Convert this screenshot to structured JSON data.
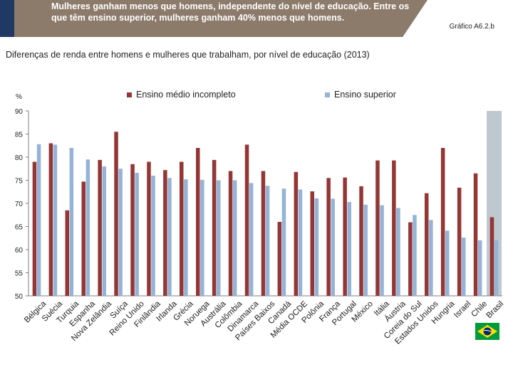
{
  "header": {
    "headline": "Mulheres ganham menos que homens, independente do nível de educação. Entre os que têm ensino superior, mulheres ganham 40% menos que homens.",
    "figure_ref": "Gráfico A6.2.b"
  },
  "colors": {
    "series1": "#943634",
    "series2": "#95b3d7",
    "highlight": "#bfc7cf",
    "banner": "#8c7b6b",
    "accent": "#1f3864"
  },
  "chart_data": {
    "type": "bar",
    "title": "Diferenças de renda entre homens e mulheres que trabalham, por nível de educação (2013)",
    "ylabel": "%",
    "ylim": [
      50,
      90
    ],
    "yticks": [
      "50",
      "55",
      "60",
      "65",
      "70",
      "75",
      "80",
      "85",
      "90"
    ],
    "grid": false,
    "legend": "top",
    "highlight_category": "Brasil",
    "categories": [
      "Bélgica",
      "Suécia",
      "Turquia",
      "Espanha",
      "Nova Zelândia",
      "Suíça",
      "Reino Unido",
      "Finlândia",
      "Irlanda",
      "Grécia",
      "Noruega",
      "Austrália",
      "Colômbia",
      "Dinamarca",
      "Países Baixos",
      "Canadá",
      "Média OCDE",
      "Polônia",
      "França",
      "Portugal",
      "México",
      "Itália",
      "Áustria",
      "Coreia do Sul",
      "Estados Unidos",
      "Hungria",
      "Israel",
      "Chile",
      "Brasil"
    ],
    "series": [
      {
        "name": "Ensino médio incompleto",
        "values": [
          79,
          83,
          68.5,
          74.7,
          79.4,
          85.5,
          78.5,
          79,
          77.2,
          79,
          82,
          79.4,
          77,
          82.7,
          77,
          66,
          76.8,
          72.6,
          75.5,
          75.6,
          73.7,
          79.3,
          79.3,
          65.9,
          72.2,
          82,
          73.4,
          76.5,
          67
        ]
      },
      {
        "name": "Ensino superior",
        "values": [
          82.8,
          82.7,
          82,
          79.5,
          78,
          77.5,
          76.6,
          76,
          75.5,
          75.2,
          75.1,
          75,
          75,
          74.4,
          73.8,
          73.2,
          73,
          71.1,
          71,
          70.3,
          69.7,
          69.6,
          69,
          67.5,
          66.4,
          64.1,
          62.6,
          62,
          62
        ]
      }
    ]
  }
}
